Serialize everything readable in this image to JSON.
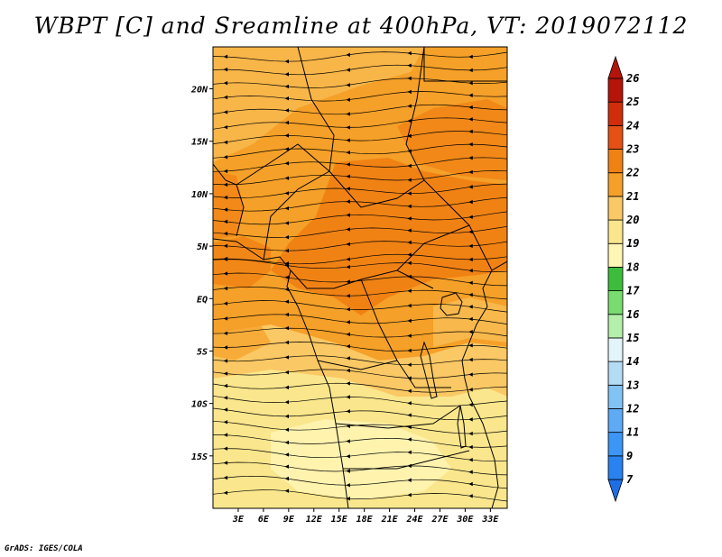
{
  "title": "WBPT [C] and Sreamline at 400hPa, VT: 2019072112",
  "credit": "GrADS: IGES/COLA",
  "map": {
    "lon_range": [
      0,
      35
    ],
    "lat_range": [
      -20,
      24
    ],
    "lon_ticks": [
      {
        "value": 3,
        "label": "3E"
      },
      {
        "value": 6,
        "label": "6E"
      },
      {
        "value": 9,
        "label": "9E"
      },
      {
        "value": 12,
        "label": "12E"
      },
      {
        "value": 15,
        "label": "15E"
      },
      {
        "value": 18,
        "label": "18E"
      },
      {
        "value": 21,
        "label": "21E"
      },
      {
        "value": 24,
        "label": "24E"
      },
      {
        "value": 27,
        "label": "27E"
      },
      {
        "value": 30,
        "label": "30E"
      },
      {
        "value": 33,
        "label": "33E"
      }
    ],
    "lat_ticks": [
      {
        "value": 20,
        "label": "20N"
      },
      {
        "value": 15,
        "label": "15N"
      },
      {
        "value": 10,
        "label": "10N"
      },
      {
        "value": 5,
        "label": "5N"
      },
      {
        "value": 0,
        "label": "EQ"
      },
      {
        "value": -5,
        "label": "5S"
      },
      {
        "value": -10,
        "label": "10S"
      },
      {
        "value": -15,
        "label": "15S"
      }
    ]
  },
  "colorbar": {
    "levels": [
      {
        "label": "7",
        "color": "#1e6ee6"
      },
      {
        "label": "9",
        "color": "#2882f0"
      },
      {
        "label": "11",
        "color": "#3c96f5"
      },
      {
        "label": "12",
        "color": "#5faaf5"
      },
      {
        "label": "13",
        "color": "#82c3f5"
      },
      {
        "label": "14",
        "color": "#b4dcf5"
      },
      {
        "label": "15",
        "color": "#e1f5fa"
      },
      {
        "label": "16",
        "color": "#b4f0aa"
      },
      {
        "label": "17",
        "color": "#78dc6e"
      },
      {
        "label": "18",
        "color": "#3cbe3c"
      },
      {
        "label": "19",
        "color": "#fff5b4"
      },
      {
        "label": "20",
        "color": "#fae68c"
      },
      {
        "label": "21",
        "color": "#fac864"
      },
      {
        "label": "22",
        "color": "#f5a028"
      },
      {
        "label": "23",
        "color": "#f08214"
      },
      {
        "label": "24",
        "color": "#e65014"
      },
      {
        "label": "25",
        "color": "#d22d0a"
      },
      {
        "label": "26",
        "color": "#b4140a"
      }
    ]
  }
}
